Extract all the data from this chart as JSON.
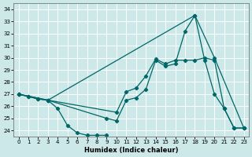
{
  "xlabel": "Humidex (Indice chaleur)",
  "bg_color": "#cce8e8",
  "grid_color": "#ffffff",
  "line_color": "#006666",
  "xlim": [
    -0.5,
    23.5
  ],
  "ylim": [
    23.5,
    34.5
  ],
  "xticks": [
    0,
    1,
    2,
    3,
    4,
    5,
    6,
    7,
    8,
    9,
    10,
    11,
    12,
    13,
    14,
    15,
    16,
    17,
    18,
    19,
    20,
    21,
    22,
    23
  ],
  "yticks": [
    24,
    25,
    26,
    27,
    28,
    29,
    30,
    31,
    32,
    33,
    34
  ],
  "series": {
    "line_bottom_dip": {
      "x": [
        0,
        1,
        2,
        3,
        4,
        5,
        6,
        7,
        8,
        9
      ],
      "y": [
        27.0,
        26.8,
        26.6,
        26.5,
        25.8,
        24.4,
        23.8,
        23.6,
        23.6,
        23.6
      ]
    },
    "line_main_zigzag": {
      "x": [
        0,
        1,
        2,
        3,
        9,
        10,
        11,
        12,
        13,
        14,
        15,
        16,
        17,
        18,
        19,
        20,
        21,
        22,
        23
      ],
      "y": [
        27.0,
        26.8,
        26.6,
        26.5,
        25.0,
        24.8,
        26.5,
        26.7,
        27.4,
        29.8,
        29.3,
        29.5,
        32.2,
        33.5,
        29.8,
        27.0,
        25.8,
        24.2,
        24.2
      ]
    },
    "line_upper_gradual": {
      "x": [
        0,
        3,
        10,
        11,
        12,
        13,
        14,
        15,
        16,
        17,
        18,
        19,
        20,
        21,
        22,
        23
      ],
      "y": [
        27.0,
        26.5,
        25.5,
        27.2,
        27.5,
        28.5,
        29.9,
        29.5,
        29.8,
        29.8,
        29.8,
        30.0,
        29.8,
        25.8,
        24.2,
        24.2
      ]
    },
    "line_straight_diagonal": {
      "x": [
        0,
        3,
        18,
        20,
        23
      ],
      "y": [
        27.0,
        26.5,
        33.5,
        30.0,
        24.2
      ]
    }
  }
}
